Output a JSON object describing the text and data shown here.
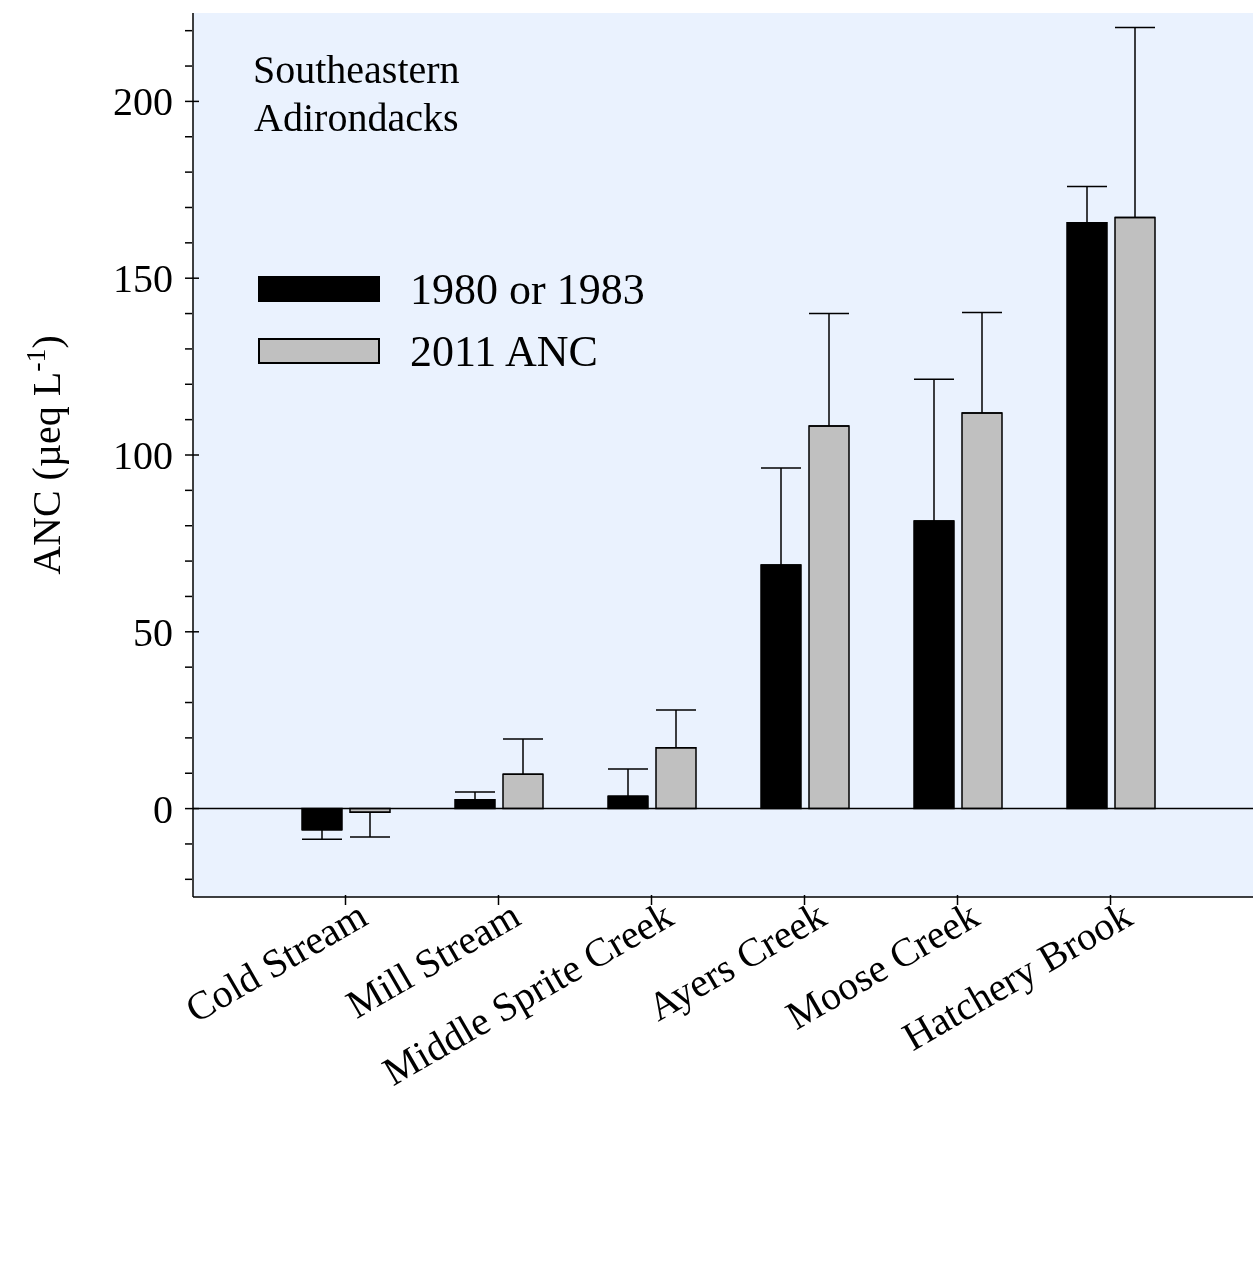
{
  "chart_data": {
    "type": "bar",
    "ylabel": "ANC (µeq L$^{-1}$)",
    "annotations": [
      "Southeastern\nAdirondacks"
    ],
    "categories": [
      "Cold Stream",
      "Mill Stream",
      "Middle Sprite Creek",
      "Ayers Creek",
      "Moose Creek",
      "Hatchery Brook"
    ],
    "series": [
      {
        "name": "1980 or 1983",
        "color": "#000000",
        "values": [
          -6,
          2.5,
          3.5,
          68.9,
          81.3,
          165.7
        ],
        "errors": [
          [
            -8.7,
            -6
          ],
          [
            2.5,
            4.7
          ],
          [
            3.5,
            11.2
          ],
          [
            68.9,
            96.3
          ],
          [
            81.3,
            121.4
          ],
          [
            165.7,
            175.9
          ]
        ]
      },
      {
        "name": "2011 ANC",
        "color": "#c0c0c0",
        "values": [
          -1,
          9.7,
          17.2,
          108.2,
          111.9,
          167.2
        ],
        "errors": [
          [
            -8,
            -1
          ],
          [
            9.7,
            19.7
          ],
          [
            17.2,
            27.9
          ],
          [
            108.2,
            140
          ],
          [
            111.9,
            140.3
          ],
          [
            167.2,
            220.9
          ]
        ]
      }
    ],
    "ylim": [
      -25,
      225
    ],
    "yticks": [
      {
        "value": -20,
        "label": null
      },
      {
        "value": -10,
        "label": null
      },
      0,
      {
        "value": 10,
        "label": null
      },
      {
        "value": 20,
        "label": null
      },
      {
        "value": 30,
        "label": null
      },
      {
        "value": 40,
        "label": null
      },
      50,
      {
        "value": 60,
        "label": null
      },
      {
        "value": 70,
        "label": null
      },
      {
        "value": 80,
        "label": null
      },
      {
        "value": 90,
        "label": null
      },
      100,
      {
        "value": 110,
        "label": null
      },
      {
        "value": 120,
        "label": null
      },
      {
        "value": 130,
        "label": null
      },
      {
        "value": 140,
        "label": null
      },
      150,
      {
        "value": 160,
        "label": null
      },
      {
        "value": 170,
        "label": null
      },
      {
        "value": 180,
        "label": null
      },
      {
        "value": 190,
        "label": null
      },
      200,
      {
        "value": 210,
        "label": null
      },
      {
        "value": 220,
        "label": null
      }
    ],
    "ref_lines": [
      {
        "axis": "y",
        "value": 0,
        "color": "#000000"
      }
    ],
    "grid": false,
    "legend": "top left"
  }
}
